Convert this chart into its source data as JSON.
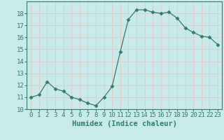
{
  "x": [
    0,
    1,
    2,
    3,
    4,
    5,
    6,
    7,
    8,
    9,
    10,
    11,
    12,
    13,
    14,
    15,
    16,
    17,
    18,
    19,
    20,
    21,
    22,
    23
  ],
  "y": [
    11.0,
    11.2,
    12.3,
    11.7,
    11.5,
    11.0,
    10.8,
    10.5,
    10.3,
    11.0,
    11.9,
    14.8,
    17.5,
    18.3,
    18.3,
    18.1,
    18.0,
    18.1,
    17.6,
    16.8,
    16.4,
    16.1,
    16.0,
    15.4
  ],
  "line_color": "#2e7d6e",
  "marker": "D",
  "marker_size": 2.5,
  "bg_color": "#c8eae8",
  "grid_color": "#e8c8c8",
  "xlabel": "Humidex (Indice chaleur)",
  "ylim": [
    10,
    19
  ],
  "xlim": [
    -0.5,
    23.5
  ],
  "yticks": [
    10,
    11,
    12,
    13,
    14,
    15,
    16,
    17,
    18
  ],
  "xticks": [
    0,
    1,
    2,
    3,
    4,
    5,
    6,
    7,
    8,
    9,
    10,
    11,
    12,
    13,
    14,
    15,
    16,
    17,
    18,
    19,
    20,
    21,
    22,
    23
  ],
  "tick_fontsize": 6.5,
  "xlabel_fontsize": 7.5,
  "tick_color": "#2e7d6e",
  "spine_color": "#2e7d6e"
}
